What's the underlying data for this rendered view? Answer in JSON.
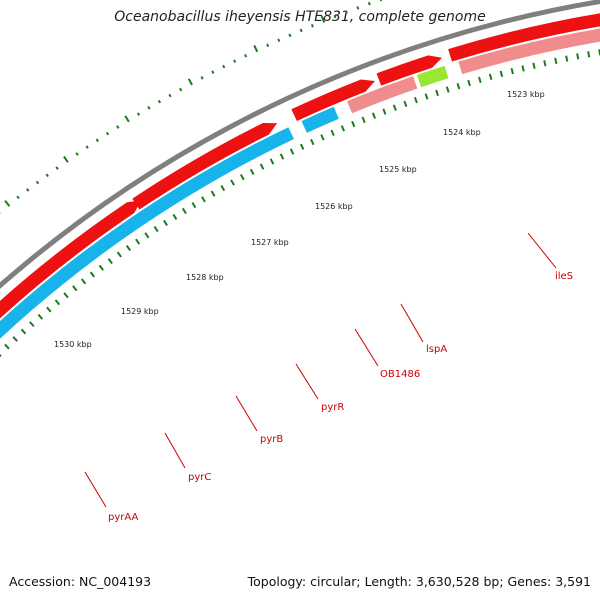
{
  "title": "Oceanobacillus iheyensis HTE831, complete genome",
  "footer": {
    "accession": "Accession: NC_004193",
    "stats": "Topology: circular; Length: 3,630,528 bp; Genes: 3,591"
  },
  "scale": {
    "labels": [
      "1523 kbp",
      "1524 kbp",
      "1525 kbp",
      "1526 kbp",
      "1527 kbp",
      "1528 kbp",
      "1529 kbp",
      "1530 kbp"
    ]
  },
  "genes": [
    "ileS",
    "lspA",
    "OB1486",
    "pyrR",
    "pyrB",
    "pyrC",
    "pyrAA"
  ],
  "colors": {
    "backbone": "#7f7f7f",
    "forward_cds": "#ee1111",
    "reverse_cds": "#f08c8c",
    "pyr_cds": "#17b4ec",
    "lspA_cds": "#99e633",
    "tick": "#1e7a1e",
    "label": "#cc0000"
  }
}
